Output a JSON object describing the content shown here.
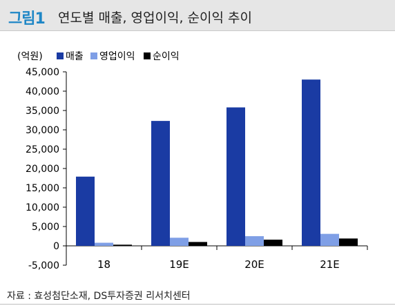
{
  "figure": {
    "number": "그림1",
    "title": "연도별 매출, 영업이익, 순이익 추이",
    "source": "자료 : 효성첨단소재, DS투자증권 리서치센터"
  },
  "chart_data": {
    "type": "bar",
    "unit_label": "(억원)",
    "categories": [
      "18",
      "19E",
      "20E",
      "21E"
    ],
    "series": [
      {
        "name": "매출",
        "color": "#1a3ba3",
        "values": [
          17900,
          32300,
          35800,
          43000
        ]
      },
      {
        "name": "영업이익",
        "color": "#7f9fe6",
        "values": [
          800,
          2100,
          2500,
          3100
        ]
      },
      {
        "name": "순이익",
        "color": "#000000",
        "values": [
          300,
          1000,
          1600,
          1900
        ]
      }
    ],
    "ylim": [
      -5000,
      45000
    ],
    "yticks": [
      -5000,
      0,
      5000,
      10000,
      15000,
      20000,
      25000,
      30000,
      35000,
      40000,
      45000
    ],
    "ytick_labels": [
      "-5,000",
      "0",
      "5,000",
      "10,000",
      "15,000",
      "20,000",
      "25,000",
      "30,000",
      "35,000",
      "40,000",
      "45,000"
    ],
    "legend_position": "top-left",
    "grid": false
  }
}
